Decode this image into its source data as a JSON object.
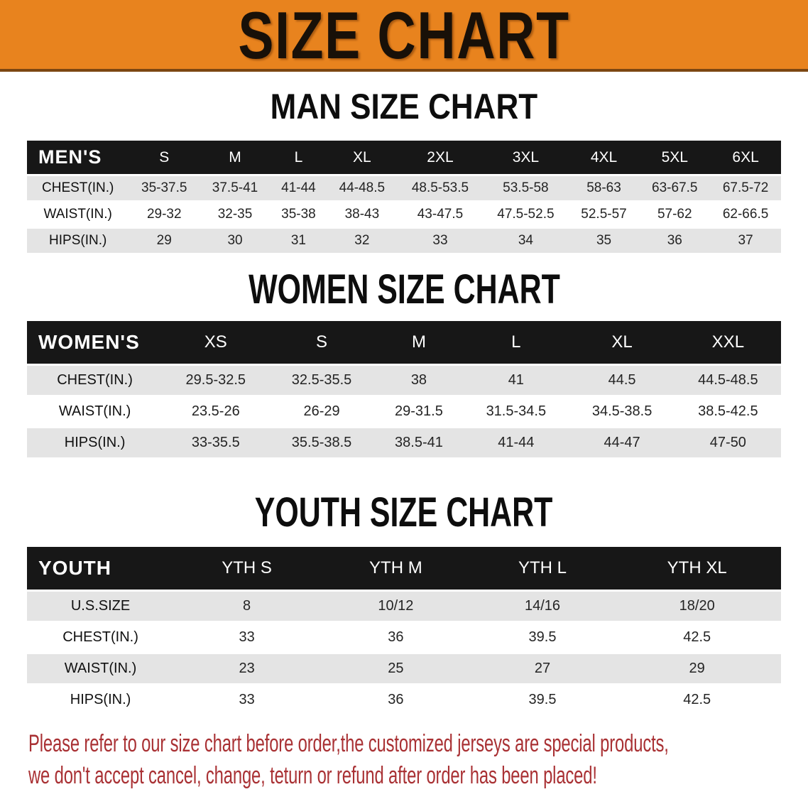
{
  "banner": {
    "title": "SIZE CHART"
  },
  "colors": {
    "banner_bg": "#E8831E",
    "banner_edge": "#7C4712",
    "banner_text": "#181008",
    "band_bg": "#171717",
    "band_text": "#FFFFFF",
    "stripe_bg": "#E4E4E4",
    "value_text": "#242424",
    "disclaimer_red": "#A93134"
  },
  "chart_data": [
    {
      "type": "table",
      "title": "MAN SIZE CHART",
      "corner_label": "MEN'S",
      "columns": [
        "S",
        "M",
        "L",
        "XL",
        "2XL",
        "3XL",
        "4XL",
        "5XL",
        "6XL"
      ],
      "rows": [
        {
          "label": "CHEST(IN.)",
          "values": [
            "35-37.5",
            "37.5-41",
            "41-44",
            "44-48.5",
            "48.5-53.5",
            "53.5-58",
            "58-63",
            "63-67.5",
            "67.5-72"
          ]
        },
        {
          "label": "WAIST(IN.)",
          "values": [
            "29-32",
            "32-35",
            "35-38",
            "38-43",
            "43-47.5",
            "47.5-52.5",
            "52.5-57",
            "57-62",
            "62-66.5"
          ]
        },
        {
          "label": "HIPS(IN.)",
          "values": [
            "29",
            "30",
            "31",
            "32",
            "33",
            "34",
            "35",
            "36",
            "37"
          ]
        }
      ]
    },
    {
      "type": "table",
      "title": "WOMEN SIZE CHART",
      "corner_label": "WOMEN'S",
      "columns": [
        "XS",
        "S",
        "M",
        "L",
        "XL",
        "XXL"
      ],
      "rows": [
        {
          "label": "CHEST(IN.)",
          "values": [
            "29.5-32.5",
            "32.5-35.5",
            "38",
            "41",
            "44.5",
            "44.5-48.5"
          ]
        },
        {
          "label": "WAIST(IN.)",
          "values": [
            "23.5-26",
            "26-29",
            "29-31.5",
            "31.5-34.5",
            "34.5-38.5",
            "38.5-42.5"
          ]
        },
        {
          "label": "HIPS(IN.)",
          "values": [
            "33-35.5",
            "35.5-38.5",
            "38.5-41",
            "41-44",
            "44-47",
            "47-50"
          ]
        }
      ]
    },
    {
      "type": "table",
      "title": "YOUTH SIZE CHART",
      "corner_label": "YOUTH",
      "columns": [
        "YTH S",
        "YTH M",
        "YTH L",
        "YTH XL"
      ],
      "rows": [
        {
          "label": "U.S.SIZE",
          "values": [
            "8",
            "10/12",
            "14/16",
            "18/20"
          ]
        },
        {
          "label": "CHEST(IN.)",
          "values": [
            "33",
            "36",
            "39.5",
            "42.5"
          ]
        },
        {
          "label": "WAIST(IN.)",
          "values": [
            "23",
            "25",
            "27",
            "29"
          ]
        },
        {
          "label": "HIPS(IN.)",
          "values": [
            "33",
            "36",
            "39.5",
            "42.5"
          ]
        }
      ]
    }
  ],
  "disclaimer": {
    "line1": "Please refer to our size chart before order,the customized jerseys are special products,",
    "line2": "we don't accept cancel, change, teturn or refund after order has been placed!"
  }
}
